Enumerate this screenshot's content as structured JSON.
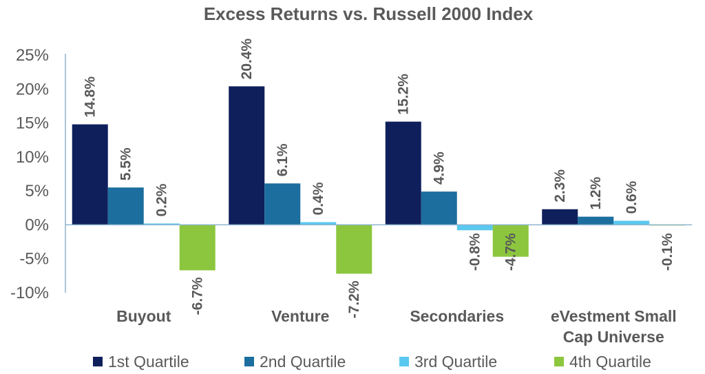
{
  "chart_data": {
    "type": "bar",
    "title": "Excess Returns vs. Russell 2000 Index",
    "xlabel": "",
    "ylabel": "",
    "ylim": [
      -10,
      25
    ],
    "yticks": [
      "25%",
      "20%",
      "15%",
      "10%",
      "5%",
      "0%",
      "-5%",
      "-10%"
    ],
    "ytick_values": [
      25,
      20,
      15,
      10,
      5,
      0,
      -5,
      -10
    ],
    "categories": [
      "Buyout",
      "Venture",
      "Secondaries",
      "eVestment Small Cap Universe"
    ],
    "category_lines": [
      [
        "Buyout"
      ],
      [
        "Venture"
      ],
      [
        "Secondaries"
      ],
      [
        "eVestment Small",
        "Cap Universe"
      ]
    ],
    "series": [
      {
        "name": "1st Quartile",
        "color": "#0f1f5c",
        "values": [
          14.8,
          20.4,
          15.2,
          2.3
        ],
        "labels": [
          "14.8%",
          "20.4%",
          "15.2%",
          "2.3%"
        ]
      },
      {
        "name": "2nd Quartile",
        "color": "#1c6e9e",
        "values": [
          5.5,
          6.1,
          4.9,
          1.2
        ],
        "labels": [
          "5.5%",
          "6.1%",
          "4.9%",
          "1.2%"
        ]
      },
      {
        "name": "3rd Quartile",
        "color": "#5bc8f0",
        "values": [
          0.2,
          0.4,
          -0.8,
          0.6
        ],
        "labels": [
          "0.2%",
          "0.4%",
          "-0.8%",
          "0.6%"
        ]
      },
      {
        "name": "4th Quartile",
        "color": "#8cc63e",
        "values": [
          -6.7,
          -7.2,
          -4.7,
          -0.1
        ],
        "labels": [
          "-6.7%",
          "-7.2%",
          "-4.7%",
          "-0.1%"
        ]
      }
    ],
    "legend_position": "bottom",
    "grid": false
  }
}
